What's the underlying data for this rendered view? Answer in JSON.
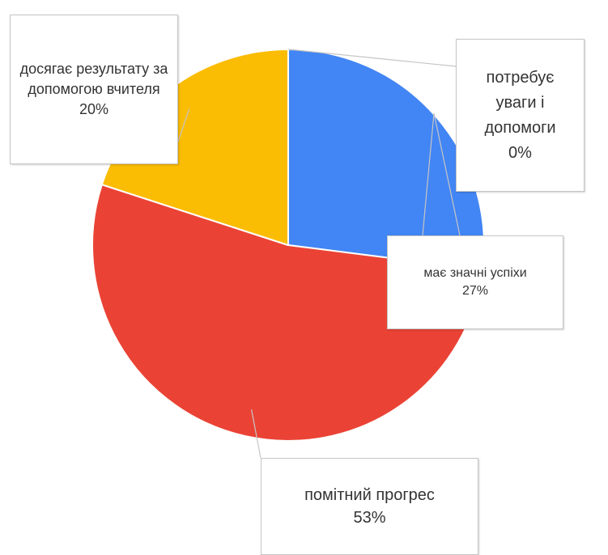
{
  "chart_data": {
    "type": "pie",
    "title": "",
    "start_angle_deg": 0,
    "direction": "clockwise",
    "slices": [
      {
        "label": "потребує уваги і допомоги",
        "value": 0,
        "display": "0%",
        "color": "#DB4437"
      },
      {
        "label": "має значні успіхи",
        "value": 27,
        "display": "27%",
        "color": "#4285F4"
      },
      {
        "label": "помітний прогрес",
        "value": 53,
        "display": "53%",
        "color": "#EA4335"
      },
      {
        "label": "досягає результату за допомогою вчителя",
        "value": 20,
        "display": "20%",
        "color": "#FBBC04"
      }
    ],
    "legend": "none",
    "labels": "callouts"
  }
}
